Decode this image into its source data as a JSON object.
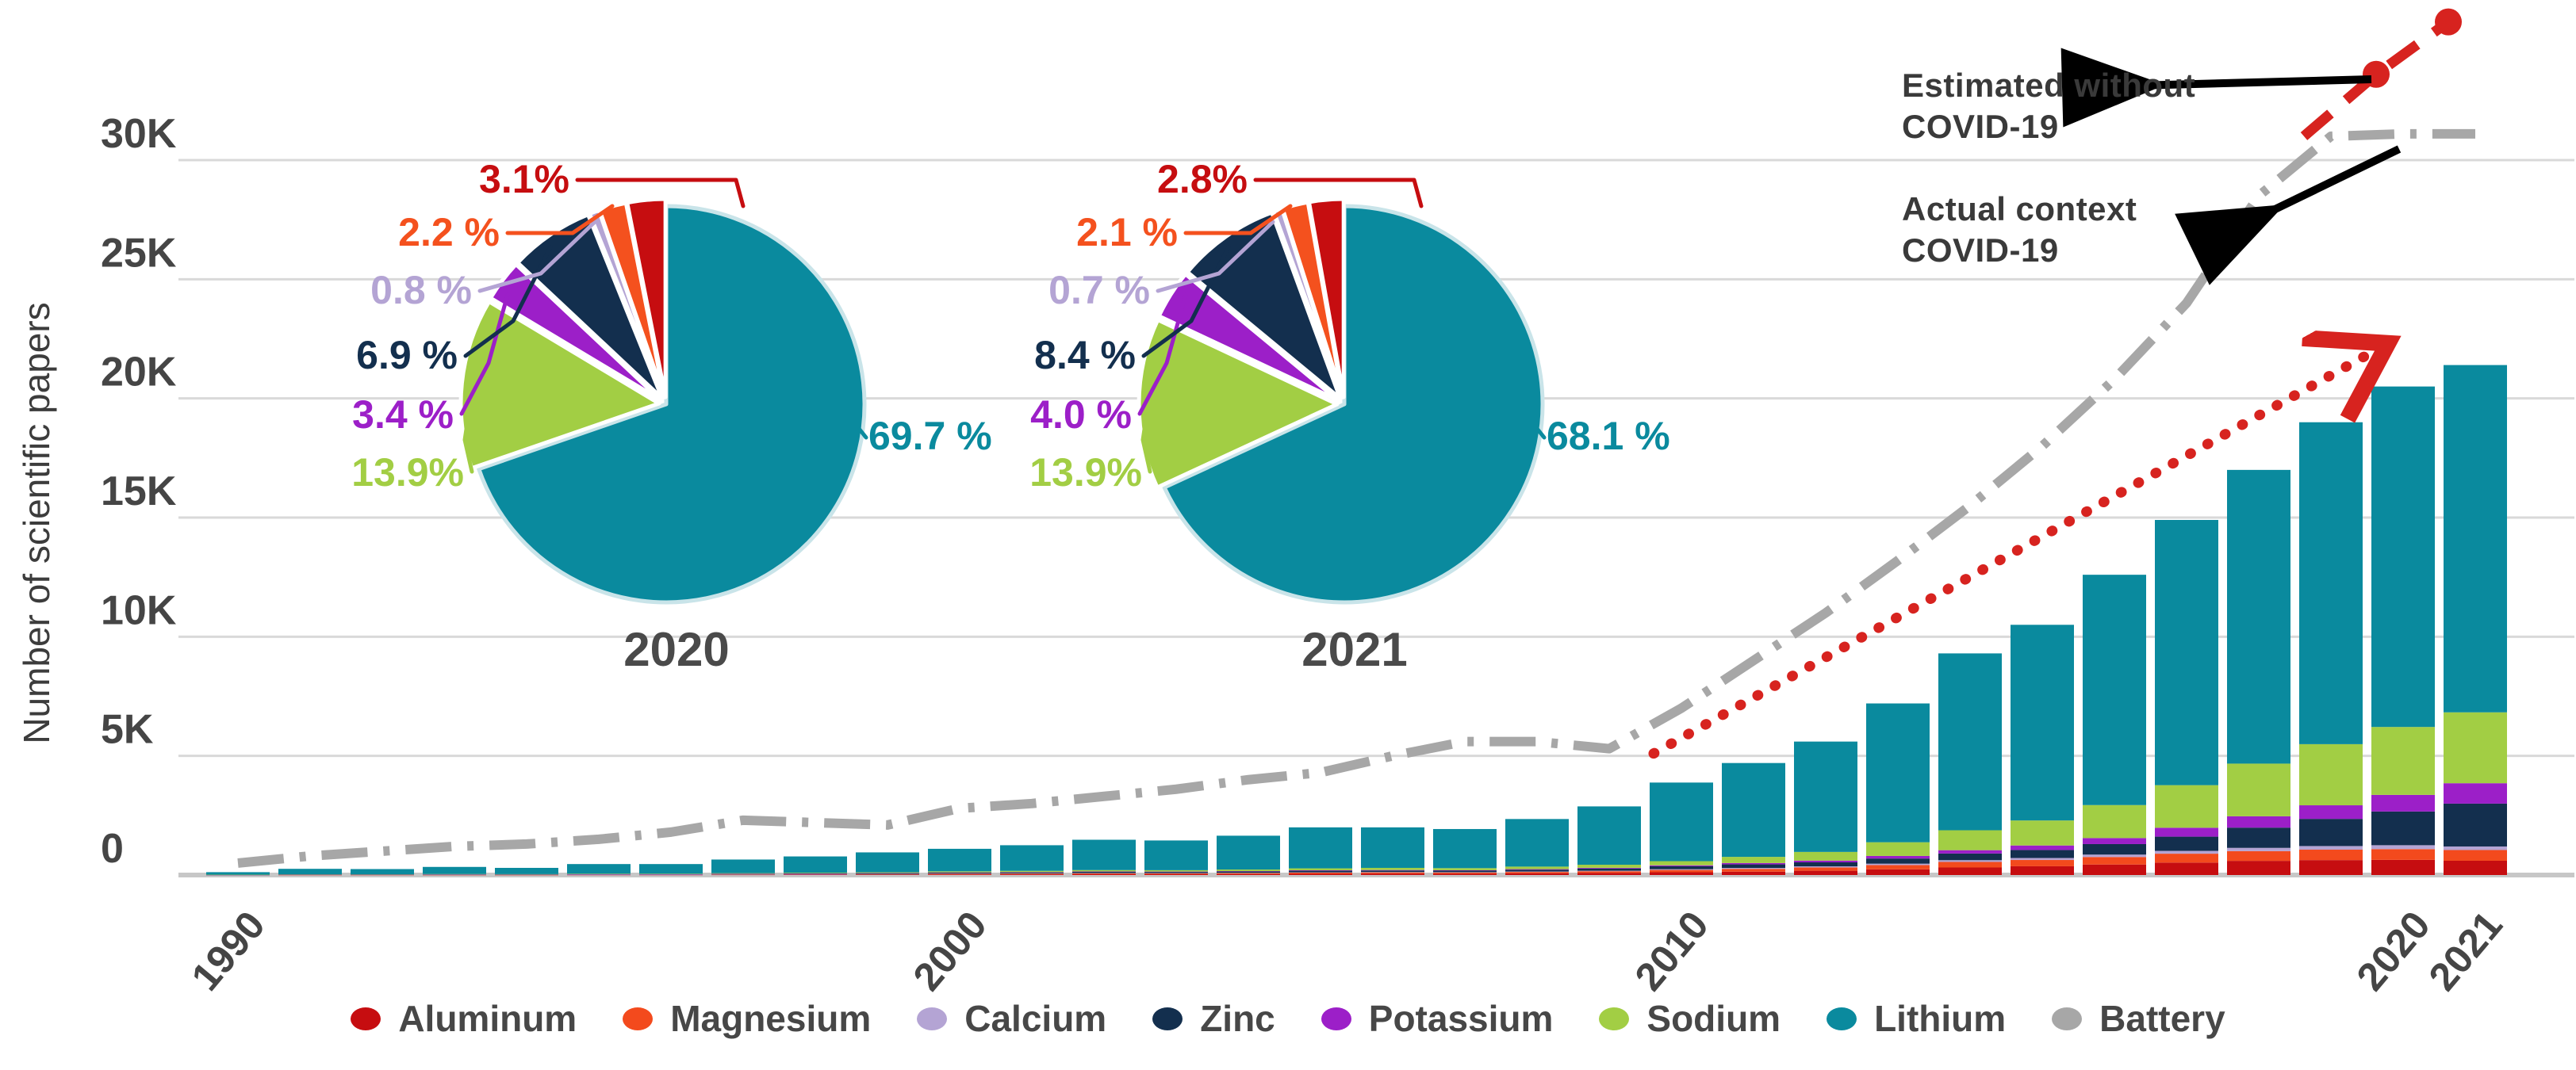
{
  "chart_data": {
    "type": "bar",
    "title": "",
    "ylabel": "Number of scientific papers",
    "ylim": [
      0,
      30000
    ],
    "grid": true,
    "y_ticks": [
      "0",
      "5K",
      "10K",
      "15K",
      "20K",
      "25K",
      "30K"
    ],
    "x_ticks": [
      {
        "label": "1990",
        "year": 1990
      },
      {
        "label": "2000",
        "year": 2000
      },
      {
        "label": "2010",
        "year": 2010
      },
      {
        "label": "2020",
        "year": 2020
      },
      {
        "label": "2021",
        "year": 2021
      }
    ],
    "years": [
      1990,
      1991,
      1992,
      1993,
      1994,
      1995,
      1996,
      1997,
      1998,
      1999,
      2000,
      2001,
      2002,
      2003,
      2004,
      2005,
      2006,
      2007,
      2008,
      2009,
      2010,
      2011,
      2012,
      2013,
      2014,
      2015,
      2016,
      2017,
      2018,
      2019,
      2020,
      2021
    ],
    "series": [
      {
        "name": "Aluminum",
        "color": "#c60d10",
        "values": [
          2,
          5,
          5,
          7,
          6,
          9,
          9,
          13,
          16,
          19,
          28,
          31,
          37,
          36,
          41,
          50,
          60,
          58,
          70,
          86,
          116,
          141,
          179,
          238,
          316,
          368,
          441,
          522,
          595,
          627,
          636,
          599
        ]
      },
      {
        "name": "Magnesium",
        "color": "#f34a1d",
        "values": [
          2,
          5,
          5,
          7,
          6,
          9,
          9,
          13,
          16,
          19,
          28,
          31,
          37,
          36,
          41,
          50,
          50,
          48,
          59,
          72,
          97,
          118,
          140,
          180,
          233,
          263,
          315,
          373,
          408,
          437,
          451,
          449
        ]
      },
      {
        "name": "Calcium",
        "color": "#b4a4d4",
        "values": [
          1,
          1,
          1,
          2,
          2,
          2,
          2,
          3,
          4,
          5,
          8,
          9,
          10,
          10,
          12,
          14,
          16,
          15,
          19,
          23,
          31,
          38,
          45,
          58,
          74,
          84,
          101,
          119,
          136,
          152,
          164,
          150
        ]
      },
      {
        "name": "Zinc",
        "color": "#132f4e",
        "values": [
          4,
          9,
          9,
          12,
          11,
          16,
          16,
          23,
          27,
          33,
          36,
          41,
          49,
          48,
          54,
          66,
          64,
          62,
          75,
          92,
          124,
          150,
          168,
          216,
          279,
          336,
          441,
          596,
          850,
          1140,
          1415,
          1798
        ]
      },
      {
        "name": "Potassium",
        "color": "#9c1fc8",
        "values": [
          1,
          1,
          1,
          2,
          2,
          2,
          2,
          3,
          4,
          5,
          11,
          13,
          15,
          15,
          17,
          20,
          20,
          19,
          24,
          29,
          39,
          56,
          73,
          108,
          140,
          189,
          252,
          373,
          476,
          570,
          697,
          856
        ]
      },
      {
        "name": "Sodium",
        "color": "#a2ce44",
        "values": [
          4,
          9,
          9,
          12,
          11,
          16,
          16,
          23,
          27,
          33,
          44,
          50,
          59,
          58,
          66,
          80,
          90,
          87,
          106,
          130,
          175,
          259,
          364,
          576,
          837,
          1050,
          1386,
          1788,
          2210,
          2565,
          2850,
          2975
        ]
      },
      {
        "name": "Lithium",
        "color": "#0a8a9e",
        "values": [
          106,
          230,
          220,
          298,
          262,
          406,
          406,
          572,
          686,
          836,
          945,
          1075,
          1273,
          1247,
          1419,
          1720,
          1700,
          1641,
          1997,
          2448,
          3298,
          3938,
          4631,
          5824,
          7421,
          8210,
          9664,
          11129,
          12325,
          13509,
          14287,
          14573
        ]
      }
    ],
    "battery_line": {
      "name": "Battery",
      "color": "#a7a7a7",
      "style": "dash-dot",
      "values": [
        500,
        800,
        1000,
        1200,
        1300,
        1500,
        1800,
        2300,
        2200,
        2100,
        2800,
        3000,
        3300,
        3600,
        4000,
        4300,
        5000,
        5600,
        5600,
        5300,
        7000,
        9000,
        11000,
        13200,
        15500,
        18000,
        20800,
        24000,
        28500,
        31000,
        31100,
        31100
      ]
    },
    "estimated_line": {
      "name": "Estimated without COVID-19",
      "color": "#d7231f",
      "style": "dashed",
      "points": [
        {
          "year": 2019,
          "value": 31000
        },
        {
          "year": 2020,
          "value": 33600
        },
        {
          "year": 2021,
          "value": 35800
        }
      ],
      "dot_years": [
        2020,
        2021
      ]
    },
    "trend_arrow": {
      "color": "#d7231f",
      "style": "dotted",
      "from": {
        "year": 2010,
        "value": 5100
      },
      "to": {
        "year": 2019.5,
        "value": 22100
      }
    },
    "pies": [
      {
        "year_label": "2020",
        "slices": [
          {
            "name": "Lithium",
            "pct": 69.7,
            "label": "69.7 %",
            "color": "#0a8a9e"
          },
          {
            "name": "Sodium",
            "pct": 13.9,
            "label": "13.9%",
            "color": "#a2ce44"
          },
          {
            "name": "Potassium",
            "pct": 3.4,
            "label": "3.4 %",
            "color": "#9c1fc8"
          },
          {
            "name": "Zinc",
            "pct": 6.9,
            "label": "6.9 %",
            "color": "#132f4e"
          },
          {
            "name": "Calcium",
            "pct": 0.8,
            "label": "0.8 %",
            "color": "#b4a4d4"
          },
          {
            "name": "Magnesium",
            "pct": 2.2,
            "label": "2.2 %",
            "color": "#f4511e"
          },
          {
            "name": "Aluminum",
            "pct": 3.1,
            "label": "3.1%",
            "color": "#c60d10"
          }
        ]
      },
      {
        "year_label": "2021",
        "slices": [
          {
            "name": "Lithium",
            "pct": 68.1,
            "label": "68.1 %",
            "color": "#0a8a9e"
          },
          {
            "name": "Sodium",
            "pct": 13.9,
            "label": "13.9%",
            "color": "#a2ce44"
          },
          {
            "name": "Potassium",
            "pct": 4.0,
            "label": "4.0 %",
            "color": "#9c1fc8"
          },
          {
            "name": "Zinc",
            "pct": 8.4,
            "label": "8.4 %",
            "color": "#132f4e"
          },
          {
            "name": "Calcium",
            "pct": 0.7,
            "label": "0.7 %",
            "color": "#b4a4d4"
          },
          {
            "name": "Magnesium",
            "pct": 2.1,
            "label": "2.1 %",
            "color": "#f4511e"
          },
          {
            "name": "Aluminum",
            "pct": 2.8,
            "label": "2.8%",
            "color": "#c60d10"
          }
        ]
      }
    ]
  },
  "annotations": {
    "estimated_line1": "Estimated without",
    "estimated_line2": "COVID-19",
    "actual_line1": "Actual context",
    "actual_line2": "COVID-19"
  },
  "axis": {
    "y_title": "Number of scientific papers"
  },
  "legend": {
    "items": [
      {
        "label": "Aluminum",
        "color": "#c60d10"
      },
      {
        "label": "Magnesium",
        "color": "#f34a1d"
      },
      {
        "label": "Calcium",
        "color": "#b4a4d4"
      },
      {
        "label": "Zinc",
        "color": "#132f4e"
      },
      {
        "label": "Potassium",
        "color": "#9c1fc8"
      },
      {
        "label": "Sodium",
        "color": "#a2ce44"
      },
      {
        "label": "Lithium",
        "color": "#0a8a9e"
      },
      {
        "label": "Battery",
        "color": "#a7a7a7"
      }
    ]
  }
}
